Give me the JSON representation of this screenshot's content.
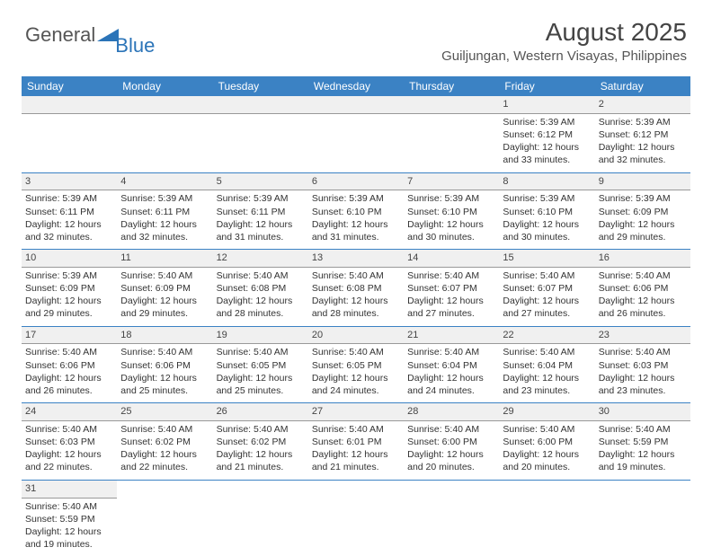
{
  "logo": {
    "word1": "General",
    "word2": "Blue"
  },
  "title": "August 2025",
  "location": "Guiljungan, Western Visayas, Philippines",
  "header_bg": "#3b82c4",
  "weekdays": [
    "Sunday",
    "Monday",
    "Tuesday",
    "Wednesday",
    "Thursday",
    "Friday",
    "Saturday"
  ],
  "cells": [
    {
      "n": "",
      "l1": "",
      "l2": "",
      "l3": "",
      "l4": ""
    },
    {
      "n": "",
      "l1": "",
      "l2": "",
      "l3": "",
      "l4": ""
    },
    {
      "n": "",
      "l1": "",
      "l2": "",
      "l3": "",
      "l4": ""
    },
    {
      "n": "",
      "l1": "",
      "l2": "",
      "l3": "",
      "l4": ""
    },
    {
      "n": "",
      "l1": "",
      "l2": "",
      "l3": "",
      "l4": ""
    },
    {
      "n": "1",
      "l1": "Sunrise: 5:39 AM",
      "l2": "Sunset: 6:12 PM",
      "l3": "Daylight: 12 hours",
      "l4": "and 33 minutes."
    },
    {
      "n": "2",
      "l1": "Sunrise: 5:39 AM",
      "l2": "Sunset: 6:12 PM",
      "l3": "Daylight: 12 hours",
      "l4": "and 32 minutes."
    },
    {
      "n": "3",
      "l1": "Sunrise: 5:39 AM",
      "l2": "Sunset: 6:11 PM",
      "l3": "Daylight: 12 hours",
      "l4": "and 32 minutes."
    },
    {
      "n": "4",
      "l1": "Sunrise: 5:39 AM",
      "l2": "Sunset: 6:11 PM",
      "l3": "Daylight: 12 hours",
      "l4": "and 32 minutes."
    },
    {
      "n": "5",
      "l1": "Sunrise: 5:39 AM",
      "l2": "Sunset: 6:11 PM",
      "l3": "Daylight: 12 hours",
      "l4": "and 31 minutes."
    },
    {
      "n": "6",
      "l1": "Sunrise: 5:39 AM",
      "l2": "Sunset: 6:10 PM",
      "l3": "Daylight: 12 hours",
      "l4": "and 31 minutes."
    },
    {
      "n": "7",
      "l1": "Sunrise: 5:39 AM",
      "l2": "Sunset: 6:10 PM",
      "l3": "Daylight: 12 hours",
      "l4": "and 30 minutes."
    },
    {
      "n": "8",
      "l1": "Sunrise: 5:39 AM",
      "l2": "Sunset: 6:10 PM",
      "l3": "Daylight: 12 hours",
      "l4": "and 30 minutes."
    },
    {
      "n": "9",
      "l1": "Sunrise: 5:39 AM",
      "l2": "Sunset: 6:09 PM",
      "l3": "Daylight: 12 hours",
      "l4": "and 29 minutes."
    },
    {
      "n": "10",
      "l1": "Sunrise: 5:39 AM",
      "l2": "Sunset: 6:09 PM",
      "l3": "Daylight: 12 hours",
      "l4": "and 29 minutes."
    },
    {
      "n": "11",
      "l1": "Sunrise: 5:40 AM",
      "l2": "Sunset: 6:09 PM",
      "l3": "Daylight: 12 hours",
      "l4": "and 29 minutes."
    },
    {
      "n": "12",
      "l1": "Sunrise: 5:40 AM",
      "l2": "Sunset: 6:08 PM",
      "l3": "Daylight: 12 hours",
      "l4": "and 28 minutes."
    },
    {
      "n": "13",
      "l1": "Sunrise: 5:40 AM",
      "l2": "Sunset: 6:08 PM",
      "l3": "Daylight: 12 hours",
      "l4": "and 28 minutes."
    },
    {
      "n": "14",
      "l1": "Sunrise: 5:40 AM",
      "l2": "Sunset: 6:07 PM",
      "l3": "Daylight: 12 hours",
      "l4": "and 27 minutes."
    },
    {
      "n": "15",
      "l1": "Sunrise: 5:40 AM",
      "l2": "Sunset: 6:07 PM",
      "l3": "Daylight: 12 hours",
      "l4": "and 27 minutes."
    },
    {
      "n": "16",
      "l1": "Sunrise: 5:40 AM",
      "l2": "Sunset: 6:06 PM",
      "l3": "Daylight: 12 hours",
      "l4": "and 26 minutes."
    },
    {
      "n": "17",
      "l1": "Sunrise: 5:40 AM",
      "l2": "Sunset: 6:06 PM",
      "l3": "Daylight: 12 hours",
      "l4": "and 26 minutes."
    },
    {
      "n": "18",
      "l1": "Sunrise: 5:40 AM",
      "l2": "Sunset: 6:06 PM",
      "l3": "Daylight: 12 hours",
      "l4": "and 25 minutes."
    },
    {
      "n": "19",
      "l1": "Sunrise: 5:40 AM",
      "l2": "Sunset: 6:05 PM",
      "l3": "Daylight: 12 hours",
      "l4": "and 25 minutes."
    },
    {
      "n": "20",
      "l1": "Sunrise: 5:40 AM",
      "l2": "Sunset: 6:05 PM",
      "l3": "Daylight: 12 hours",
      "l4": "and 24 minutes."
    },
    {
      "n": "21",
      "l1": "Sunrise: 5:40 AM",
      "l2": "Sunset: 6:04 PM",
      "l3": "Daylight: 12 hours",
      "l4": "and 24 minutes."
    },
    {
      "n": "22",
      "l1": "Sunrise: 5:40 AM",
      "l2": "Sunset: 6:04 PM",
      "l3": "Daylight: 12 hours",
      "l4": "and 23 minutes."
    },
    {
      "n": "23",
      "l1": "Sunrise: 5:40 AM",
      "l2": "Sunset: 6:03 PM",
      "l3": "Daylight: 12 hours",
      "l4": "and 23 minutes."
    },
    {
      "n": "24",
      "l1": "Sunrise: 5:40 AM",
      "l2": "Sunset: 6:03 PM",
      "l3": "Daylight: 12 hours",
      "l4": "and 22 minutes."
    },
    {
      "n": "25",
      "l1": "Sunrise: 5:40 AM",
      "l2": "Sunset: 6:02 PM",
      "l3": "Daylight: 12 hours",
      "l4": "and 22 minutes."
    },
    {
      "n": "26",
      "l1": "Sunrise: 5:40 AM",
      "l2": "Sunset: 6:02 PM",
      "l3": "Daylight: 12 hours",
      "l4": "and 21 minutes."
    },
    {
      "n": "27",
      "l1": "Sunrise: 5:40 AM",
      "l2": "Sunset: 6:01 PM",
      "l3": "Daylight: 12 hours",
      "l4": "and 21 minutes."
    },
    {
      "n": "28",
      "l1": "Sunrise: 5:40 AM",
      "l2": "Sunset: 6:00 PM",
      "l3": "Daylight: 12 hours",
      "l4": "and 20 minutes."
    },
    {
      "n": "29",
      "l1": "Sunrise: 5:40 AM",
      "l2": "Sunset: 6:00 PM",
      "l3": "Daylight: 12 hours",
      "l4": "and 20 minutes."
    },
    {
      "n": "30",
      "l1": "Sunrise: 5:40 AM",
      "l2": "Sunset: 5:59 PM",
      "l3": "Daylight: 12 hours",
      "l4": "and 19 minutes."
    },
    {
      "n": "31",
      "l1": "Sunrise: 5:40 AM",
      "l2": "Sunset: 5:59 PM",
      "l3": "Daylight: 12 hours",
      "l4": "and 19 minutes."
    },
    {
      "n": "",
      "l1": "",
      "l2": "",
      "l3": "",
      "l4": ""
    },
    {
      "n": "",
      "l1": "",
      "l2": "",
      "l3": "",
      "l4": ""
    },
    {
      "n": "",
      "l1": "",
      "l2": "",
      "l3": "",
      "l4": ""
    },
    {
      "n": "",
      "l1": "",
      "l2": "",
      "l3": "",
      "l4": ""
    },
    {
      "n": "",
      "l1": "",
      "l2": "",
      "l3": "",
      "l4": ""
    },
    {
      "n": "",
      "l1": "",
      "l2": "",
      "l3": "",
      "l4": ""
    }
  ]
}
